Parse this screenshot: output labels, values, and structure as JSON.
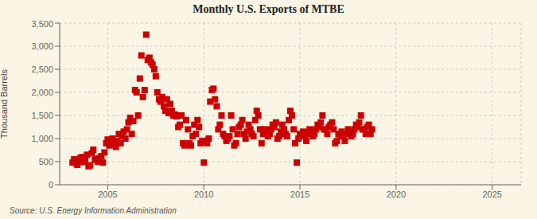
{
  "chart_data": {
    "type": "scatter",
    "title": "Monthly U.S. Exports of MTBE",
    "ylabel": "Thousand Barrels",
    "annotations": [
      "Source: U.S. Energy Information Administration"
    ],
    "color": "#cc0000",
    "marker": "square",
    "grid": true,
    "xlim": [
      2002.5,
      2026.5
    ],
    "ylim": [
      0,
      3500
    ],
    "xticks": [
      2005,
      2010,
      2015,
      2020,
      2025
    ],
    "yticks": [
      0,
      500,
      {
        "value": 1000,
        "label": "1,000"
      },
      {
        "value": 1500,
        "label": "1,500"
      },
      {
        "value": 2000,
        "label": "2,000"
      },
      {
        "value": 2500,
        "label": "2,500"
      },
      {
        "value": 3000,
        "label": "3,000"
      },
      {
        "value": 3500,
        "label": "3,500"
      }
    ],
    "x": [
      2003.17,
      2003.25,
      2003.33,
      2003.42,
      2003.5,
      2003.58,
      2003.67,
      2003.75,
      2003.83,
      2003.92,
      2004.0,
      2004.08,
      2004.17,
      2004.25,
      2004.33,
      2004.42,
      2004.5,
      2004.58,
      2004.67,
      2004.75,
      2004.83,
      2004.92,
      2005.0,
      2005.08,
      2005.17,
      2005.25,
      2005.33,
      2005.42,
      2005.5,
      2005.58,
      2005.67,
      2005.75,
      2005.83,
      2005.92,
      2006.0,
      2006.08,
      2006.17,
      2006.25,
      2006.33,
      2006.42,
      2006.5,
      2006.58,
      2006.67,
      2006.75,
      2006.83,
      2006.92,
      2007.0,
      2007.08,
      2007.17,
      2007.25,
      2007.33,
      2007.42,
      2007.5,
      2007.58,
      2007.67,
      2007.75,
      2007.83,
      2007.92,
      2008.0,
      2008.08,
      2008.17,
      2008.25,
      2008.33,
      2008.42,
      2008.5,
      2008.58,
      2008.67,
      2008.75,
      2008.83,
      2008.92,
      2009.0,
      2009.08,
      2009.17,
      2009.25,
      2009.33,
      2009.42,
      2009.5,
      2009.58,
      2009.67,
      2009.75,
      2009.83,
      2009.92,
      2010.0,
      2010.08,
      2010.17,
      2010.25,
      2010.33,
      2010.42,
      2010.5,
      2010.58,
      2010.67,
      2010.75,
      2010.83,
      2010.92,
      2011.0,
      2011.08,
      2011.17,
      2011.25,
      2011.33,
      2011.42,
      2011.5,
      2011.58,
      2011.67,
      2011.75,
      2011.83,
      2011.92,
      2012.0,
      2012.08,
      2012.17,
      2012.25,
      2012.33,
      2012.42,
      2012.5,
      2012.58,
      2012.67,
      2012.75,
      2012.83,
      2012.92,
      2013.0,
      2013.08,
      2013.17,
      2013.25,
      2013.33,
      2013.42,
      2013.5,
      2013.58,
      2013.67,
      2013.75,
      2013.83,
      2013.92,
      2014.0,
      2014.08,
      2014.17,
      2014.25,
      2014.33,
      2014.42,
      2014.5,
      2014.58,
      2014.67,
      2014.75,
      2014.83,
      2014.92,
      2015.0,
      2015.08,
      2015.17,
      2015.25,
      2015.33,
      2015.42,
      2015.5,
      2015.58,
      2015.67,
      2015.75,
      2015.83,
      2015.92,
      2016.0,
      2016.08,
      2016.17,
      2016.25,
      2016.33,
      2016.42,
      2016.5,
      2016.58,
      2016.67,
      2016.75,
      2016.83,
      2016.92,
      2017.0,
      2017.08,
      2017.17,
      2017.25,
      2017.33,
      2017.42,
      2017.5,
      2017.58,
      2017.67,
      2017.75,
      2017.83,
      2017.92,
      2018.0,
      2018.08,
      2018.17,
      2018.25,
      2018.33,
      2018.42,
      2018.5,
      2018.58,
      2018.67,
      2018.75
    ],
    "values": [
      480,
      550,
      470,
      430,
      510,
      580,
      600,
      490,
      520,
      650,
      400,
      420,
      680,
      760,
      540,
      560,
      500,
      580,
      620,
      480,
      700,
      900,
      980,
      850,
      920,
      1000,
      870,
      820,
      950,
      1100,
      900,
      1050,
      1150,
      1000,
      1200,
      1350,
      1450,
      1100,
      1380,
      2050,
      2000,
      1500,
      2300,
      2800,
      1900,
      2050,
      3250,
      2700,
      2750,
      2650,
      2600,
      2500,
      2350,
      2000,
      1850,
      1800,
      1900,
      1700,
      1600,
      1850,
      1550,
      1750,
      1600,
      1500,
      1520,
      1480,
      1250,
      1300,
      1500,
      900,
      850,
      1400,
      1200,
      900,
      850,
      1050,
      1300,
      1100,
      1400,
      1250,
      900,
      950,
      480,
      950,
      900,
      1000,
      1800,
      2050,
      2080,
      1850,
      1700,
      1200,
      1300,
      1500,
      1100,
      1050,
      950,
      1000,
      1050,
      1500,
      1200,
      850,
      900,
      1100,
      1250,
      1300,
      1400,
      1100,
      1000,
      1150,
      1300,
      1200,
      1100,
      1050,
      1400,
      1600,
      1500,
      1200,
      900,
      1100,
      1200,
      1150,
      1050,
      1100,
      1200,
      1300,
      1250,
      1350,
      1000,
      1050,
      1150,
      1300,
      1200,
      1100,
      1050,
      1400,
      1600,
      1500,
      1200,
      900,
      480,
      1000,
      1100,
      1050,
      1150,
      1050,
      950,
      1100,
      1200,
      1150,
      1050,
      1100,
      1200,
      1300,
      1250,
      1350,
      1500,
      1200,
      1200,
      1100,
      1250,
      1300,
      1350,
      1200,
      900,
      950,
      1100,
      1050,
      1150,
      1050,
      950,
      1100,
      1200,
      1150,
      1050,
      1100,
      1200,
      1300,
      1250,
      1350,
      1500,
      1200,
      1200,
      1100,
      1250,
      1300,
      1100,
      1200
    ]
  }
}
